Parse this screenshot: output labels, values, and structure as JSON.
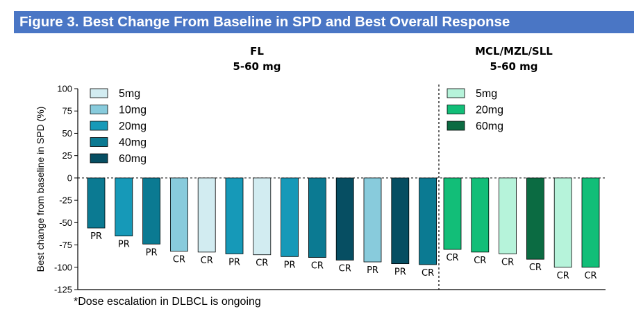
{
  "title": "Figure 3. Best Change From Baseline in SPD and Best Overall Response",
  "panels": {
    "left": {
      "name": "FL",
      "dose": "5-60 mg"
    },
    "right": {
      "name": "MCL/MZL/SLL",
      "dose": "5-60 mg"
    }
  },
  "footnote": "*Dose escalation in DLBCL is ongoing",
  "colors": {
    "fl_5mg": "#d2ecf1",
    "fl_10mg": "#88cbdc",
    "fl_20mg": "#1699b8",
    "fl_40mg": "#0b7a92",
    "fl_60mg": "#064e62",
    "mcl_5mg": "#b6f3da",
    "mcl_20mg": "#12be78",
    "mcl_60mg": "#0b6b42"
  },
  "chart_data": {
    "type": "bar",
    "ylabel": "Best change from baseline  in SPD (%)",
    "ylim": [
      -125,
      100
    ],
    "yticks": [
      100,
      75,
      50,
      25,
      0,
      -25,
      -50,
      -75,
      -100,
      -125
    ],
    "legend": [
      {
        "panel": "left",
        "items": [
          {
            "label": "5mg",
            "color_key": "fl_5mg"
          },
          {
            "label": "10mg",
            "color_key": "fl_10mg"
          },
          {
            "label": "20mg",
            "color_key": "fl_20mg"
          },
          {
            "label": "40mg",
            "color_key": "fl_40mg"
          },
          {
            "label": "60mg",
            "color_key": "fl_60mg"
          }
        ]
      },
      {
        "panel": "right",
        "items": [
          {
            "label": "5mg",
            "color_key": "mcl_5mg"
          },
          {
            "label": "20mg",
            "color_key": "mcl_20mg"
          },
          {
            "label": "60mg",
            "color_key": "mcl_60mg"
          }
        ]
      }
    ],
    "bars": [
      {
        "panel": "left",
        "dose": "40mg",
        "value": -56,
        "response": "PR"
      },
      {
        "panel": "left",
        "dose": "20mg",
        "value": -65,
        "response": "PR"
      },
      {
        "panel": "left",
        "dose": "40mg",
        "value": -74,
        "response": "PR"
      },
      {
        "panel": "left",
        "dose": "10mg",
        "value": -82,
        "response": "CR"
      },
      {
        "panel": "left",
        "dose": "5mg",
        "value": -83,
        "response": "CR"
      },
      {
        "panel": "left",
        "dose": "20mg",
        "value": -85,
        "response": "PR"
      },
      {
        "panel": "left",
        "dose": "5mg",
        "value": -86,
        "response": "CR"
      },
      {
        "panel": "left",
        "dose": "20mg",
        "value": -88,
        "response": "PR"
      },
      {
        "panel": "left",
        "dose": "40mg",
        "value": -89,
        "response": "CR"
      },
      {
        "panel": "left",
        "dose": "60mg",
        "value": -92,
        "response": "CR"
      },
      {
        "panel": "left",
        "dose": "10mg",
        "value": -94,
        "response": "PR"
      },
      {
        "panel": "left",
        "dose": "60mg",
        "value": -96,
        "response": "PR"
      },
      {
        "panel": "left",
        "dose": "40mg",
        "value": -97,
        "response": "CR"
      },
      {
        "panel": "right",
        "dose": "20mg",
        "value": -80,
        "response": "CR"
      },
      {
        "panel": "right",
        "dose": "20mg",
        "value": -83,
        "response": "CR"
      },
      {
        "panel": "right",
        "dose": "5mg",
        "value": -85,
        "response": "CR"
      },
      {
        "panel": "right",
        "dose": "60mg",
        "value": -91,
        "response": "CR"
      },
      {
        "panel": "right",
        "dose": "5mg",
        "value": -100,
        "response": "CR"
      },
      {
        "panel": "right",
        "dose": "20mg",
        "value": -100,
        "response": "CR"
      }
    ]
  }
}
